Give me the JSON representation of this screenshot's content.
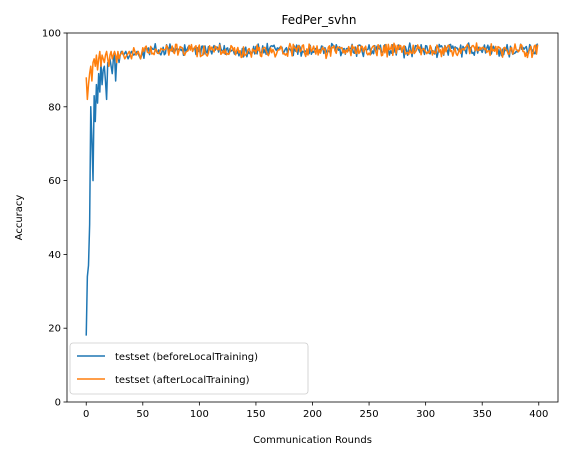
{
  "chart_data": {
    "type": "line",
    "title": "FedPer_svhn",
    "xlabel": "Communication Rounds",
    "ylabel": "Accuracy",
    "xlim": [
      -17,
      417
    ],
    "ylim": [
      0,
      100
    ],
    "xticks": [
      0,
      50,
      100,
      150,
      200,
      250,
      300,
      350,
      400
    ],
    "yticks": [
      0,
      20,
      40,
      60,
      80,
      100
    ],
    "grid": false,
    "legend_position": "lower-left",
    "series": [
      {
        "name": "testset (beforeLocalTraining)",
        "color": "#1f77b4",
        "points": [
          [
            0,
            18
          ],
          [
            1,
            34
          ],
          [
            2,
            37
          ],
          [
            3,
            48
          ],
          [
            4,
            80
          ],
          [
            5,
            71
          ],
          [
            6,
            60
          ],
          [
            7,
            83
          ],
          [
            8,
            76
          ],
          [
            9,
            86
          ],
          [
            10,
            81
          ],
          [
            11,
            89
          ],
          [
            12,
            84
          ],
          [
            13,
            92
          ],
          [
            14,
            86
          ],
          [
            15,
            90
          ],
          [
            16,
            91
          ],
          [
            17,
            87
          ],
          [
            18,
            82
          ],
          [
            19,
            92
          ],
          [
            20,
            91
          ],
          [
            21,
            93
          ],
          [
            22,
            91
          ],
          [
            23,
            89
          ],
          [
            24,
            93
          ],
          [
            25,
            94
          ],
          [
            26,
            87
          ],
          [
            27,
            93
          ],
          [
            28,
            94
          ],
          [
            29,
            92
          ],
          [
            30,
            94
          ],
          [
            31,
            95
          ],
          [
            33,
            94
          ],
          [
            35,
            95
          ],
          [
            37,
            93
          ],
          [
            40,
            95
          ],
          [
            42,
            94
          ],
          [
            45,
            95
          ],
          [
            48,
            93
          ],
          [
            50,
            95
          ]
        ],
        "values_generated": true
      },
      {
        "name": "testset (afterLocalTraining)",
        "color": "#ff7f0e",
        "points": [
          [
            0,
            88
          ],
          [
            1,
            82
          ],
          [
            2,
            86
          ],
          [
            3,
            89
          ],
          [
            4,
            91
          ],
          [
            5,
            87
          ],
          [
            6,
            92
          ],
          [
            7,
            93
          ],
          [
            8,
            91
          ],
          [
            9,
            94
          ],
          [
            10,
            90
          ],
          [
            11,
            93
          ],
          [
            12,
            95
          ],
          [
            13,
            91
          ],
          [
            14,
            94
          ],
          [
            15,
            93
          ],
          [
            16,
            92
          ],
          [
            17,
            94
          ],
          [
            18,
            95
          ],
          [
            19,
            93
          ],
          [
            20,
            91
          ],
          [
            21,
            94
          ],
          [
            22,
            95
          ],
          [
            23,
            93
          ],
          [
            24,
            94
          ],
          [
            25,
            95
          ],
          [
            26,
            94
          ],
          [
            27,
            92
          ],
          [
            28,
            95
          ],
          [
            29,
            93
          ],
          [
            30,
            94
          ],
          [
            32,
            95
          ],
          [
            34,
            93
          ],
          [
            36,
            94
          ],
          [
            38,
            95
          ],
          [
            40,
            93
          ],
          [
            42,
            96
          ],
          [
            44,
            94
          ],
          [
            46,
            95
          ],
          [
            48,
            93
          ],
          [
            50,
            96
          ]
        ],
        "tail_mean": 95.3,
        "tail_spread": 1.6,
        "values_generated": true
      }
    ]
  }
}
